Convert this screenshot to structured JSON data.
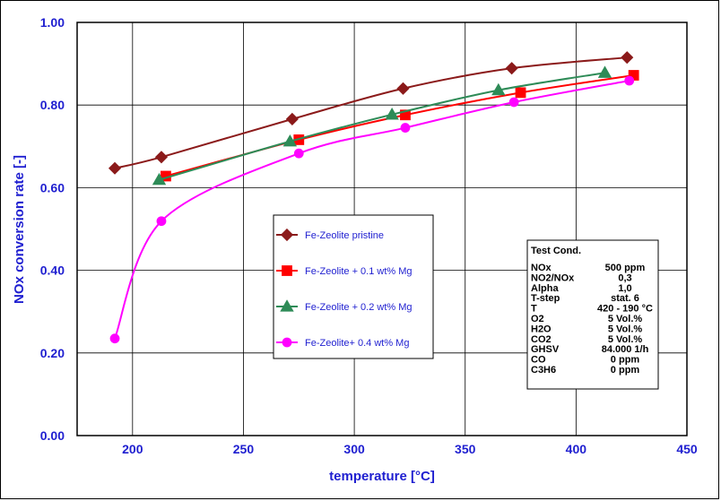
{
  "chart_data": {
    "type": "line",
    "xlabel": "temperature [°C]",
    "ylabel": "NOx conversion rate [-]",
    "xlim": [
      175,
      450
    ],
    "ylim": [
      0.0,
      1.0
    ],
    "x_ticks": [
      "200",
      "250",
      "300",
      "350",
      "400",
      "450"
    ],
    "y_ticks": [
      "0.00",
      "0.20",
      "0.40",
      "0.60",
      "0.80",
      "1.00"
    ],
    "grid": true,
    "legend_position": "center",
    "series": [
      {
        "name": "Fe-Zeolite pristine",
        "color": "#8b1a1a",
        "marker": "diamond",
        "x": [
          192,
          213,
          272,
          322,
          371,
          423
        ],
        "y": [
          0.647,
          0.674,
          0.766,
          0.84,
          0.889,
          0.915
        ]
      },
      {
        "name": "Fe-Zeolite + 0.1 wt% Mg",
        "color": "#ff0000",
        "marker": "square",
        "x": [
          215,
          275,
          323,
          375,
          426
        ],
        "y": [
          0.628,
          0.716,
          0.776,
          0.83,
          0.872
        ]
      },
      {
        "name": "Fe-Zeolite + 0.2 wt% Mg",
        "color": "#2e8b57",
        "marker": "triangle",
        "x": [
          212,
          271,
          317,
          365,
          413
        ],
        "y": [
          0.619,
          0.712,
          0.777,
          0.836,
          0.878
        ]
      },
      {
        "name": "Fe-Zeolite+ 0.4 wt% Mg",
        "color": "#ff00ff",
        "marker": "circle",
        "x": [
          192,
          213,
          275,
          323,
          372,
          424
        ],
        "y": [
          0.235,
          0.519,
          0.683,
          0.745,
          0.807,
          0.859
        ]
      }
    ]
  },
  "conditions": {
    "title": "Test Cond.",
    "rows": [
      {
        "key": "NOx",
        "value": "500 ppm"
      },
      {
        "key": "NO2/NOx",
        "value": "0,3"
      },
      {
        "key": "Alpha",
        "value": "1,0"
      },
      {
        "key": "T-step",
        "value": "stat. 6"
      },
      {
        "key": "T",
        "value": "420 - 190 °C"
      },
      {
        "key": "O2",
        "value": "5 Vol.%"
      },
      {
        "key": "H2O",
        "value": "5 Vol.%"
      },
      {
        "key": "CO2",
        "value": "5 Vol.%"
      },
      {
        "key": "GHSV",
        "value": "84.000 1/h"
      },
      {
        "key": "CO",
        "value": "0 ppm"
      },
      {
        "key": "C3H6",
        "value": "0 ppm"
      }
    ]
  }
}
